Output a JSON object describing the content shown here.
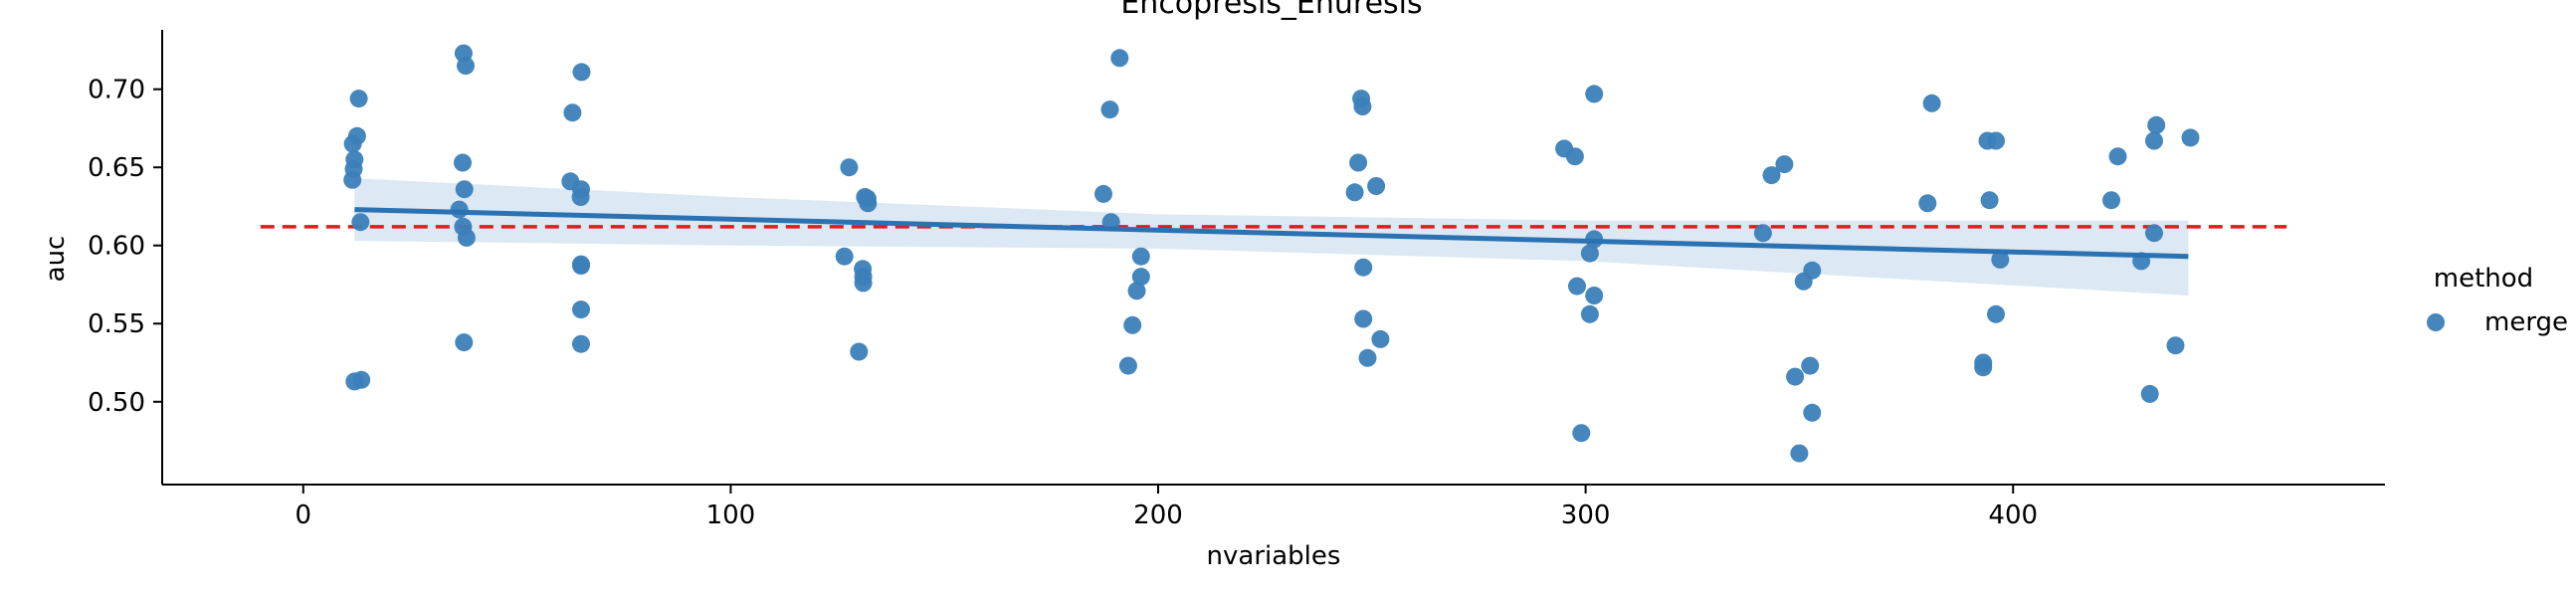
{
  "chart_data": {
    "type": "scatter",
    "title": "Encopresis_Enuresis",
    "xlabel": "nvariables",
    "ylabel": "auc",
    "xlim": [
      -33,
      487
    ],
    "ylim": [
      0.447,
      0.738
    ],
    "xticks": [
      0,
      100,
      200,
      300,
      400
    ],
    "yticks": [
      0.5,
      0.55,
      0.6,
      0.65,
      0.7
    ],
    "ytick_labels": [
      "0.50",
      "0.55",
      "0.60",
      "0.65",
      "0.70"
    ],
    "grid": false,
    "legend": {
      "title": "method",
      "placement": "right",
      "entries": [
        "merge"
      ]
    },
    "colors": {
      "points": "#3b7fb9",
      "regression": "#2a72b1",
      "band": "#c5d9ec",
      "reference": "#e31a1c"
    },
    "reference_line": {
      "y": 0.612,
      "x_from": -10,
      "x_to": 464,
      "style": "dashed"
    },
    "regression": {
      "x0": 12,
      "y0": 0.623,
      "x1": 441,
      "y1": 0.593
    },
    "confidence_band": {
      "x": [
        12,
        100,
        200,
        300,
        441
      ],
      "upper": [
        0.643,
        0.631,
        0.62,
        0.616,
        0.616
      ],
      "lower": [
        0.603,
        0.6,
        0.598,
        0.59,
        0.568
      ]
    },
    "series": [
      {
        "name": "merge",
        "points": [
          [
            11.5,
            0.642
          ],
          [
            11.8,
            0.649
          ],
          [
            12.0,
            0.655
          ],
          [
            11.6,
            0.665
          ],
          [
            12.6,
            0.67
          ],
          [
            13.0,
            0.694
          ],
          [
            13.4,
            0.615
          ],
          [
            12.0,
            0.513
          ],
          [
            13.6,
            0.514
          ],
          [
            37.5,
            0.723
          ],
          [
            38.0,
            0.715
          ],
          [
            37.3,
            0.653
          ],
          [
            37.7,
            0.636
          ],
          [
            36.5,
            0.623
          ],
          [
            37.4,
            0.612
          ],
          [
            38.2,
            0.605
          ],
          [
            37.6,
            0.538
          ],
          [
            62.5,
            0.641
          ],
          [
            65.0,
            0.636
          ],
          [
            64.9,
            0.631
          ],
          [
            63.0,
            0.685
          ],
          [
            65.1,
            0.711
          ],
          [
            65.0,
            0.588
          ],
          [
            65.0,
            0.587
          ],
          [
            65.0,
            0.559
          ],
          [
            65.0,
            0.537
          ],
          [
            127.7,
            0.65
          ],
          [
            131.4,
            0.631
          ],
          [
            132.0,
            0.63
          ],
          [
            132.1,
            0.627
          ],
          [
            126.6,
            0.593
          ],
          [
            130.9,
            0.585
          ],
          [
            131.0,
            0.58
          ],
          [
            131.0,
            0.576
          ],
          [
            130.0,
            0.532
          ],
          [
            191.0,
            0.72
          ],
          [
            188.7,
            0.687
          ],
          [
            187.2,
            0.633
          ],
          [
            189.0,
            0.615
          ],
          [
            196.0,
            0.593
          ],
          [
            196.0,
            0.58
          ],
          [
            195.0,
            0.571
          ],
          [
            194.0,
            0.549
          ],
          [
            193.0,
            0.523
          ],
          [
            247.5,
            0.694
          ],
          [
            247.8,
            0.689
          ],
          [
            246.8,
            0.653
          ],
          [
            251.0,
            0.638
          ],
          [
            246.0,
            0.634
          ],
          [
            248.0,
            0.586
          ],
          [
            248.0,
            0.553
          ],
          [
            252.0,
            0.54
          ],
          [
            249.0,
            0.528
          ],
          [
            295.0,
            0.662
          ],
          [
            297.5,
            0.657
          ],
          [
            302.0,
            0.697
          ],
          [
            302.0,
            0.604
          ],
          [
            301.0,
            0.595
          ],
          [
            298.0,
            0.574
          ],
          [
            302.0,
            0.568
          ],
          [
            301.0,
            0.556
          ],
          [
            299.0,
            0.48
          ],
          [
            346.5,
            0.652
          ],
          [
            343.5,
            0.645
          ],
          [
            341.5,
            0.608
          ],
          [
            353.0,
            0.584
          ],
          [
            351.0,
            0.577
          ],
          [
            352.5,
            0.523
          ],
          [
            349.0,
            0.516
          ],
          [
            353.0,
            0.493
          ],
          [
            350.0,
            0.467
          ],
          [
            381.0,
            0.691
          ],
          [
            394.0,
            0.667
          ],
          [
            396.0,
            0.667
          ],
          [
            380.0,
            0.627
          ],
          [
            394.5,
            0.629
          ],
          [
            397.0,
            0.591
          ],
          [
            396.0,
            0.556
          ],
          [
            393.0,
            0.525
          ],
          [
            393.0,
            0.522
          ],
          [
            433.5,
            0.677
          ],
          [
            424.5,
            0.657
          ],
          [
            433.0,
            0.667
          ],
          [
            441.5,
            0.669
          ],
          [
            423.0,
            0.629
          ],
          [
            433.0,
            0.608
          ],
          [
            430.0,
            0.59
          ],
          [
            438.0,
            0.536
          ],
          [
            432.0,
            0.505
          ]
        ]
      }
    ]
  }
}
